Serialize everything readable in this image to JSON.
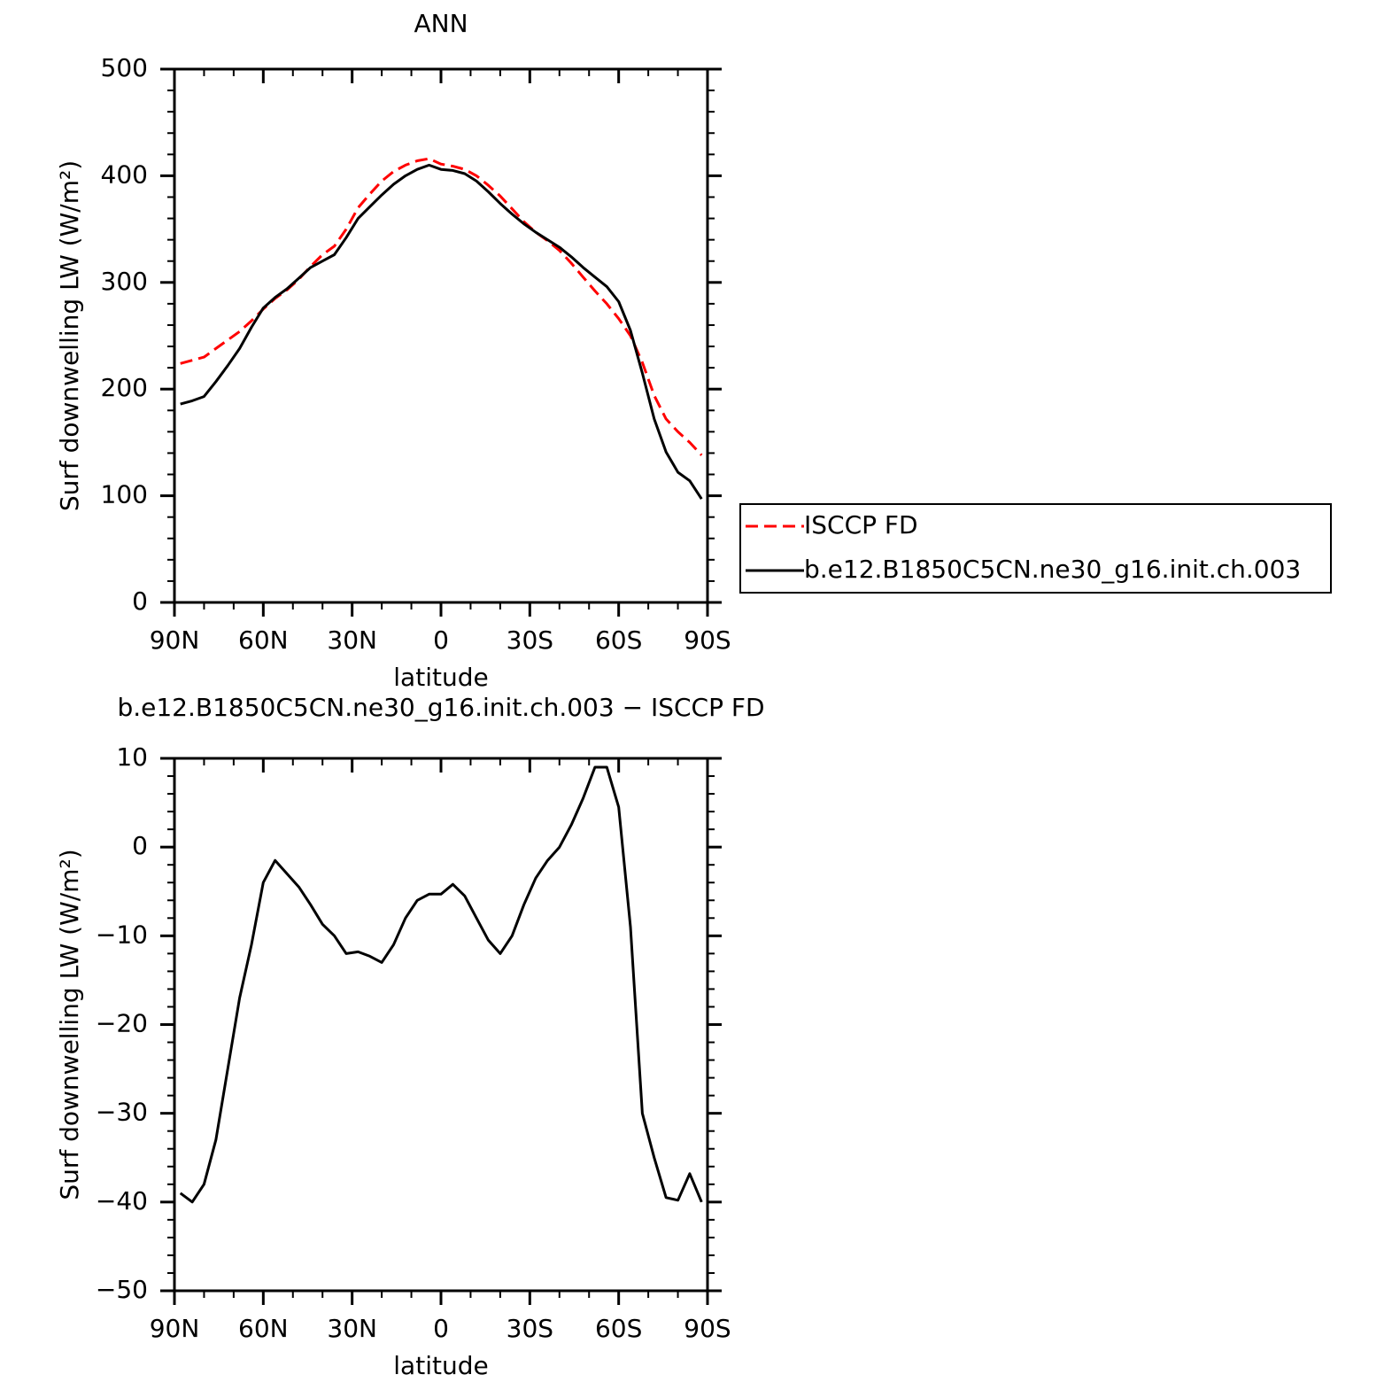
{
  "chart_data": [
    {
      "type": "line",
      "title": "ANN",
      "xlabel": "latitude",
      "ylabel": "Surf downwelling LW (W/m²)",
      "x": [
        88,
        84,
        80,
        76,
        72,
        68,
        64,
        60,
        56,
        52,
        48,
        44,
        40,
        36,
        32,
        28,
        24,
        20,
        16,
        12,
        8,
        4,
        0,
        -4,
        -8,
        -12,
        -16,
        -20,
        -24,
        -28,
        -32,
        -36,
        -40,
        -44,
        -48,
        -52,
        -56,
        -60,
        -64,
        -68,
        -72,
        -76,
        -80,
        -84,
        -88
      ],
      "series": [
        {
          "name": "ISCCP FD",
          "color": "#ff0000",
          "dash": true,
          "values": [
            224,
            227,
            230,
            238,
            246,
            254,
            264,
            275,
            285,
            293,
            303,
            315,
            326,
            334,
            350,
            370,
            383,
            395,
            404,
            410,
            414,
            416,
            411,
            409,
            406,
            400,
            391,
            381,
            369,
            357,
            347,
            339,
            330,
            318,
            305,
            292,
            280,
            266,
            250,
            225,
            194,
            172,
            160,
            150,
            138
          ]
        },
        {
          "name": "b.e12.B1850C5CN.ne30_g16.init.ch.003",
          "color": "#000000",
          "dash": false,
          "values": [
            186,
            189,
            193,
            207,
            222,
            238,
            258,
            276,
            286,
            294,
            304,
            314,
            320,
            326,
            342,
            360,
            371,
            382,
            392,
            400,
            406,
            410,
            406,
            405,
            402,
            395,
            385,
            374,
            364,
            355,
            347,
            340,
            333,
            324,
            314,
            305,
            296,
            282,
            255,
            215,
            172,
            141,
            122,
            114,
            97
          ]
        }
      ],
      "xlim": [
        90,
        -90
      ],
      "xticks": [
        {
          "value": 90,
          "label": "90N"
        },
        {
          "value": 60,
          "label": "60N"
        },
        {
          "value": 30,
          "label": "30N"
        },
        0,
        {
          "value": -30,
          "label": "30S"
        },
        {
          "value": -60,
          "label": "60S"
        },
        {
          "value": -90,
          "label": "90S"
        }
      ],
      "ylim": [
        0,
        500
      ],
      "yticks": [
        0,
        100,
        200,
        300,
        400,
        500
      ],
      "legend": "right"
    },
    {
      "type": "line",
      "title": "b.e12.B1850C5CN.ne30_g16.init.ch.003 − ISCCP FD",
      "xlabel": "latitude",
      "ylabel": "Surf downwelling LW (W/m²)",
      "x": [
        88,
        84,
        80,
        76,
        72,
        68,
        64,
        60,
        56,
        52,
        48,
        44,
        40,
        36,
        32,
        28,
        24,
        20,
        16,
        12,
        8,
        4,
        0,
        -4,
        -8,
        -12,
        -16,
        -20,
        -24,
        -28,
        -32,
        -36,
        -40,
        -44,
        -48,
        -52,
        -56,
        -60,
        -64,
        -68,
        -72,
        -76,
        -80,
        -84,
        -88
      ],
      "values": [
        -39,
        -40,
        -38,
        -33,
        -25,
        -17,
        -11,
        -4,
        -1.5,
        -3,
        -4.5,
        -6.5,
        -8.7,
        -10,
        -12,
        -11.8,
        -12.3,
        -13,
        -11,
        -8,
        -6,
        -5.3,
        -5.3,
        -4.2,
        -5.5,
        -8,
        -10.5,
        -12,
        -10,
        -6.5,
        -3.5,
        -1.5,
        0,
        2.5,
        5.5,
        9,
        9,
        4.5,
        -9,
        -30,
        -35,
        -39.5,
        -39.8,
        -36.8,
        -40
      ],
      "color": "#000000",
      "xlim": [
        90,
        -90
      ],
      "xticks": [
        {
          "value": 90,
          "label": "90N"
        },
        {
          "value": 60,
          "label": "60N"
        },
        {
          "value": 30,
          "label": "30N"
        },
        0,
        {
          "value": -30,
          "label": "30S"
        },
        {
          "value": -60,
          "label": "60S"
        },
        {
          "value": -90,
          "label": "90S"
        }
      ],
      "ylim": [
        -50,
        10
      ],
      "yticks": [
        {
          "value": -50,
          "label": "−50"
        },
        {
          "value": -40,
          "label": "−40"
        },
        {
          "value": -30,
          "label": "−30"
        },
        {
          "value": -20,
          "label": "−20"
        },
        {
          "value": -10,
          "label": "−10"
        },
        0,
        10
      ]
    }
  ]
}
